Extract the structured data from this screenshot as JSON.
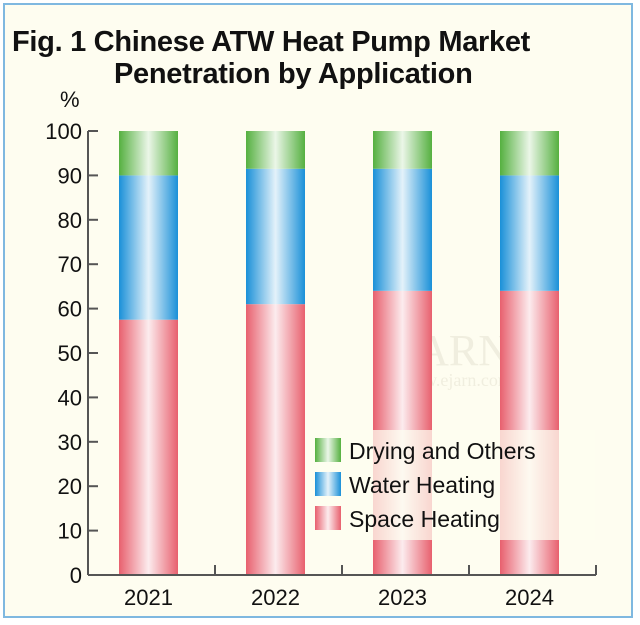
{
  "chart_data": {
    "type": "bar",
    "stacked": true,
    "title": "Fig. 1  Chinese ATW Heat Pump Market Penetration by Application",
    "title_lines": [
      "Fig. 1  Chinese ATW Heat Pump Market",
      "Penetration by Application"
    ],
    "ylabel": "%",
    "xlabel": "",
    "ylim": [
      0,
      100
    ],
    "yticks": [
      0,
      10,
      20,
      30,
      40,
      50,
      60,
      70,
      80,
      90,
      100
    ],
    "categories": [
      "2021",
      "2022",
      "2023",
      "2024"
    ],
    "series": [
      {
        "name": "Space Heating",
        "color": "#e8606e",
        "values": [
          57.5,
          61,
          64,
          64
        ]
      },
      {
        "name": "Water Heating",
        "color": "#1a90d8",
        "values": [
          32.5,
          30.5,
          27.5,
          26
        ]
      },
      {
        "name": "Drying and Others",
        "color": "#55b040",
        "values": [
          10,
          8.5,
          8.5,
          10
        ]
      }
    ],
    "legend": {
      "placement": "bottom-right",
      "order": [
        "Drying and Others",
        "Water Heating",
        "Space Heating"
      ]
    },
    "grid": false,
    "watermark": [
      "JARN",
      "www.ejarn.com"
    ]
  }
}
